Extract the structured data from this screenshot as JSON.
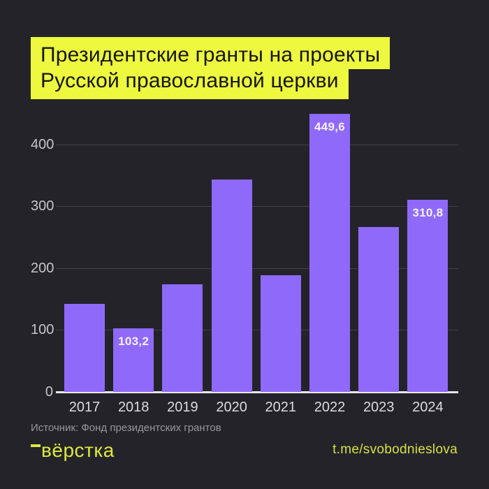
{
  "title": {
    "line1": "Президентские гранты на проекты",
    "line2": "Русской православной церкви"
  },
  "chart_data": {
    "type": "bar",
    "categories": [
      "2017",
      "2018",
      "2019",
      "2020",
      "2021",
      "2022",
      "2023",
      "2024"
    ],
    "values": [
      142,
      103.2,
      174,
      343,
      189,
      449.6,
      266,
      310.8
    ],
    "bar_labels": [
      "",
      "103,2",
      "",
      "",
      "",
      "449,6",
      "",
      "310,8"
    ],
    "title": "Президентские гранты на проекты Русской православной церкви",
    "xlabel": "",
    "ylabel": "",
    "ylim": [
      0,
      455
    ],
    "yticks": [
      0,
      100,
      200,
      300,
      400
    ],
    "grid": true,
    "legend": "none",
    "bar_color": "#8F6AFA"
  },
  "footer": {
    "source": "Источник: Фонд президентских грантов",
    "logo_text": "вёрстка",
    "telegram_link": "t.me/svobodnieslova"
  },
  "colors": {
    "background": "#242329",
    "highlight_yellow": "#EDF83F",
    "bar_purple": "#8F6AFA",
    "link_yellow": "#D5E244"
  }
}
